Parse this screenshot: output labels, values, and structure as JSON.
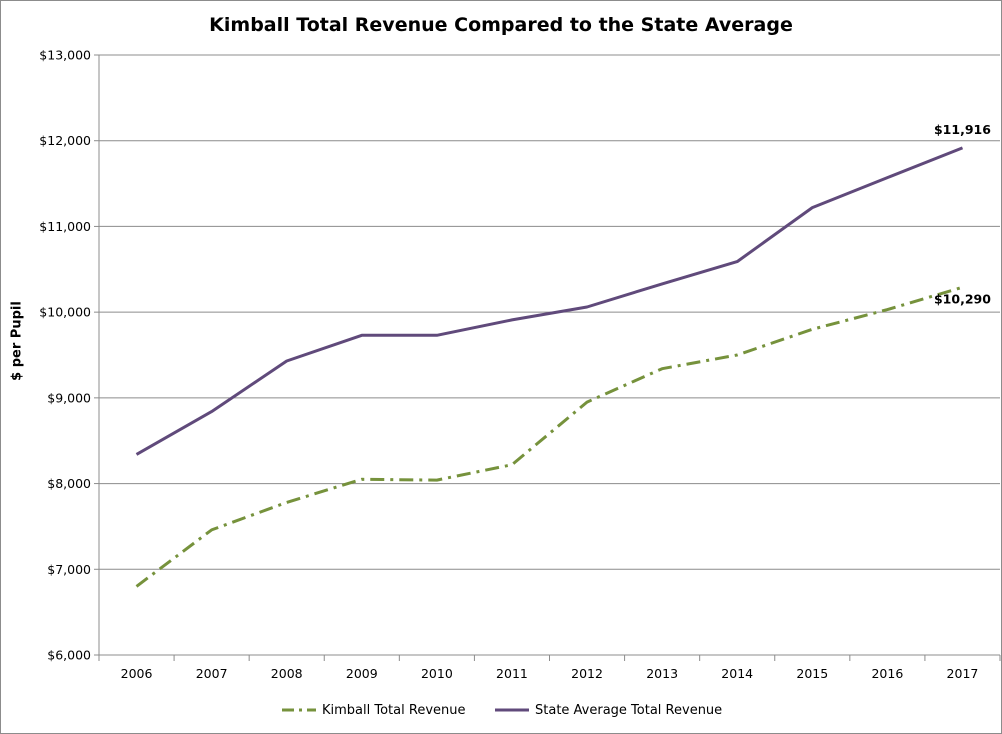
{
  "chart_data": {
    "type": "line",
    "title": "Kimball Total Revenue Compared to the State Average",
    "ylabel": "$ per Pupil",
    "xlabel": "",
    "ylim": [
      6000,
      13000
    ],
    "yticks": [
      "$6,000",
      "$7,000",
      "$8,000",
      "$9,000",
      "$10,000",
      "$11,000",
      "$12,000",
      "$13,000"
    ],
    "ytick_values": [
      6000,
      7000,
      8000,
      9000,
      10000,
      11000,
      12000,
      13000
    ],
    "categories": [
      "2006",
      "2007",
      "2008",
      "2009",
      "2010",
      "2011",
      "2012",
      "2013",
      "2014",
      "2015",
      "2016",
      "2017"
    ],
    "grid": true,
    "legend_position": "bottom",
    "series": [
      {
        "name": "Kimball Total Revenue",
        "color": "#76923c",
        "style": "dash-dot",
        "values": [
          6800,
          7460,
          7780,
          8050,
          8040,
          8220,
          8950,
          9340,
          9500,
          9800,
          10030,
          10290
        ],
        "end_label": "$10,290"
      },
      {
        "name": "State Average Total Revenue",
        "color": "#604a7b",
        "style": "solid",
        "values": [
          8340,
          8840,
          9430,
          9730,
          9730,
          9910,
          10060,
          10330,
          10590,
          11220,
          11570,
          11916
        ],
        "end_label": "$11,916"
      }
    ]
  }
}
